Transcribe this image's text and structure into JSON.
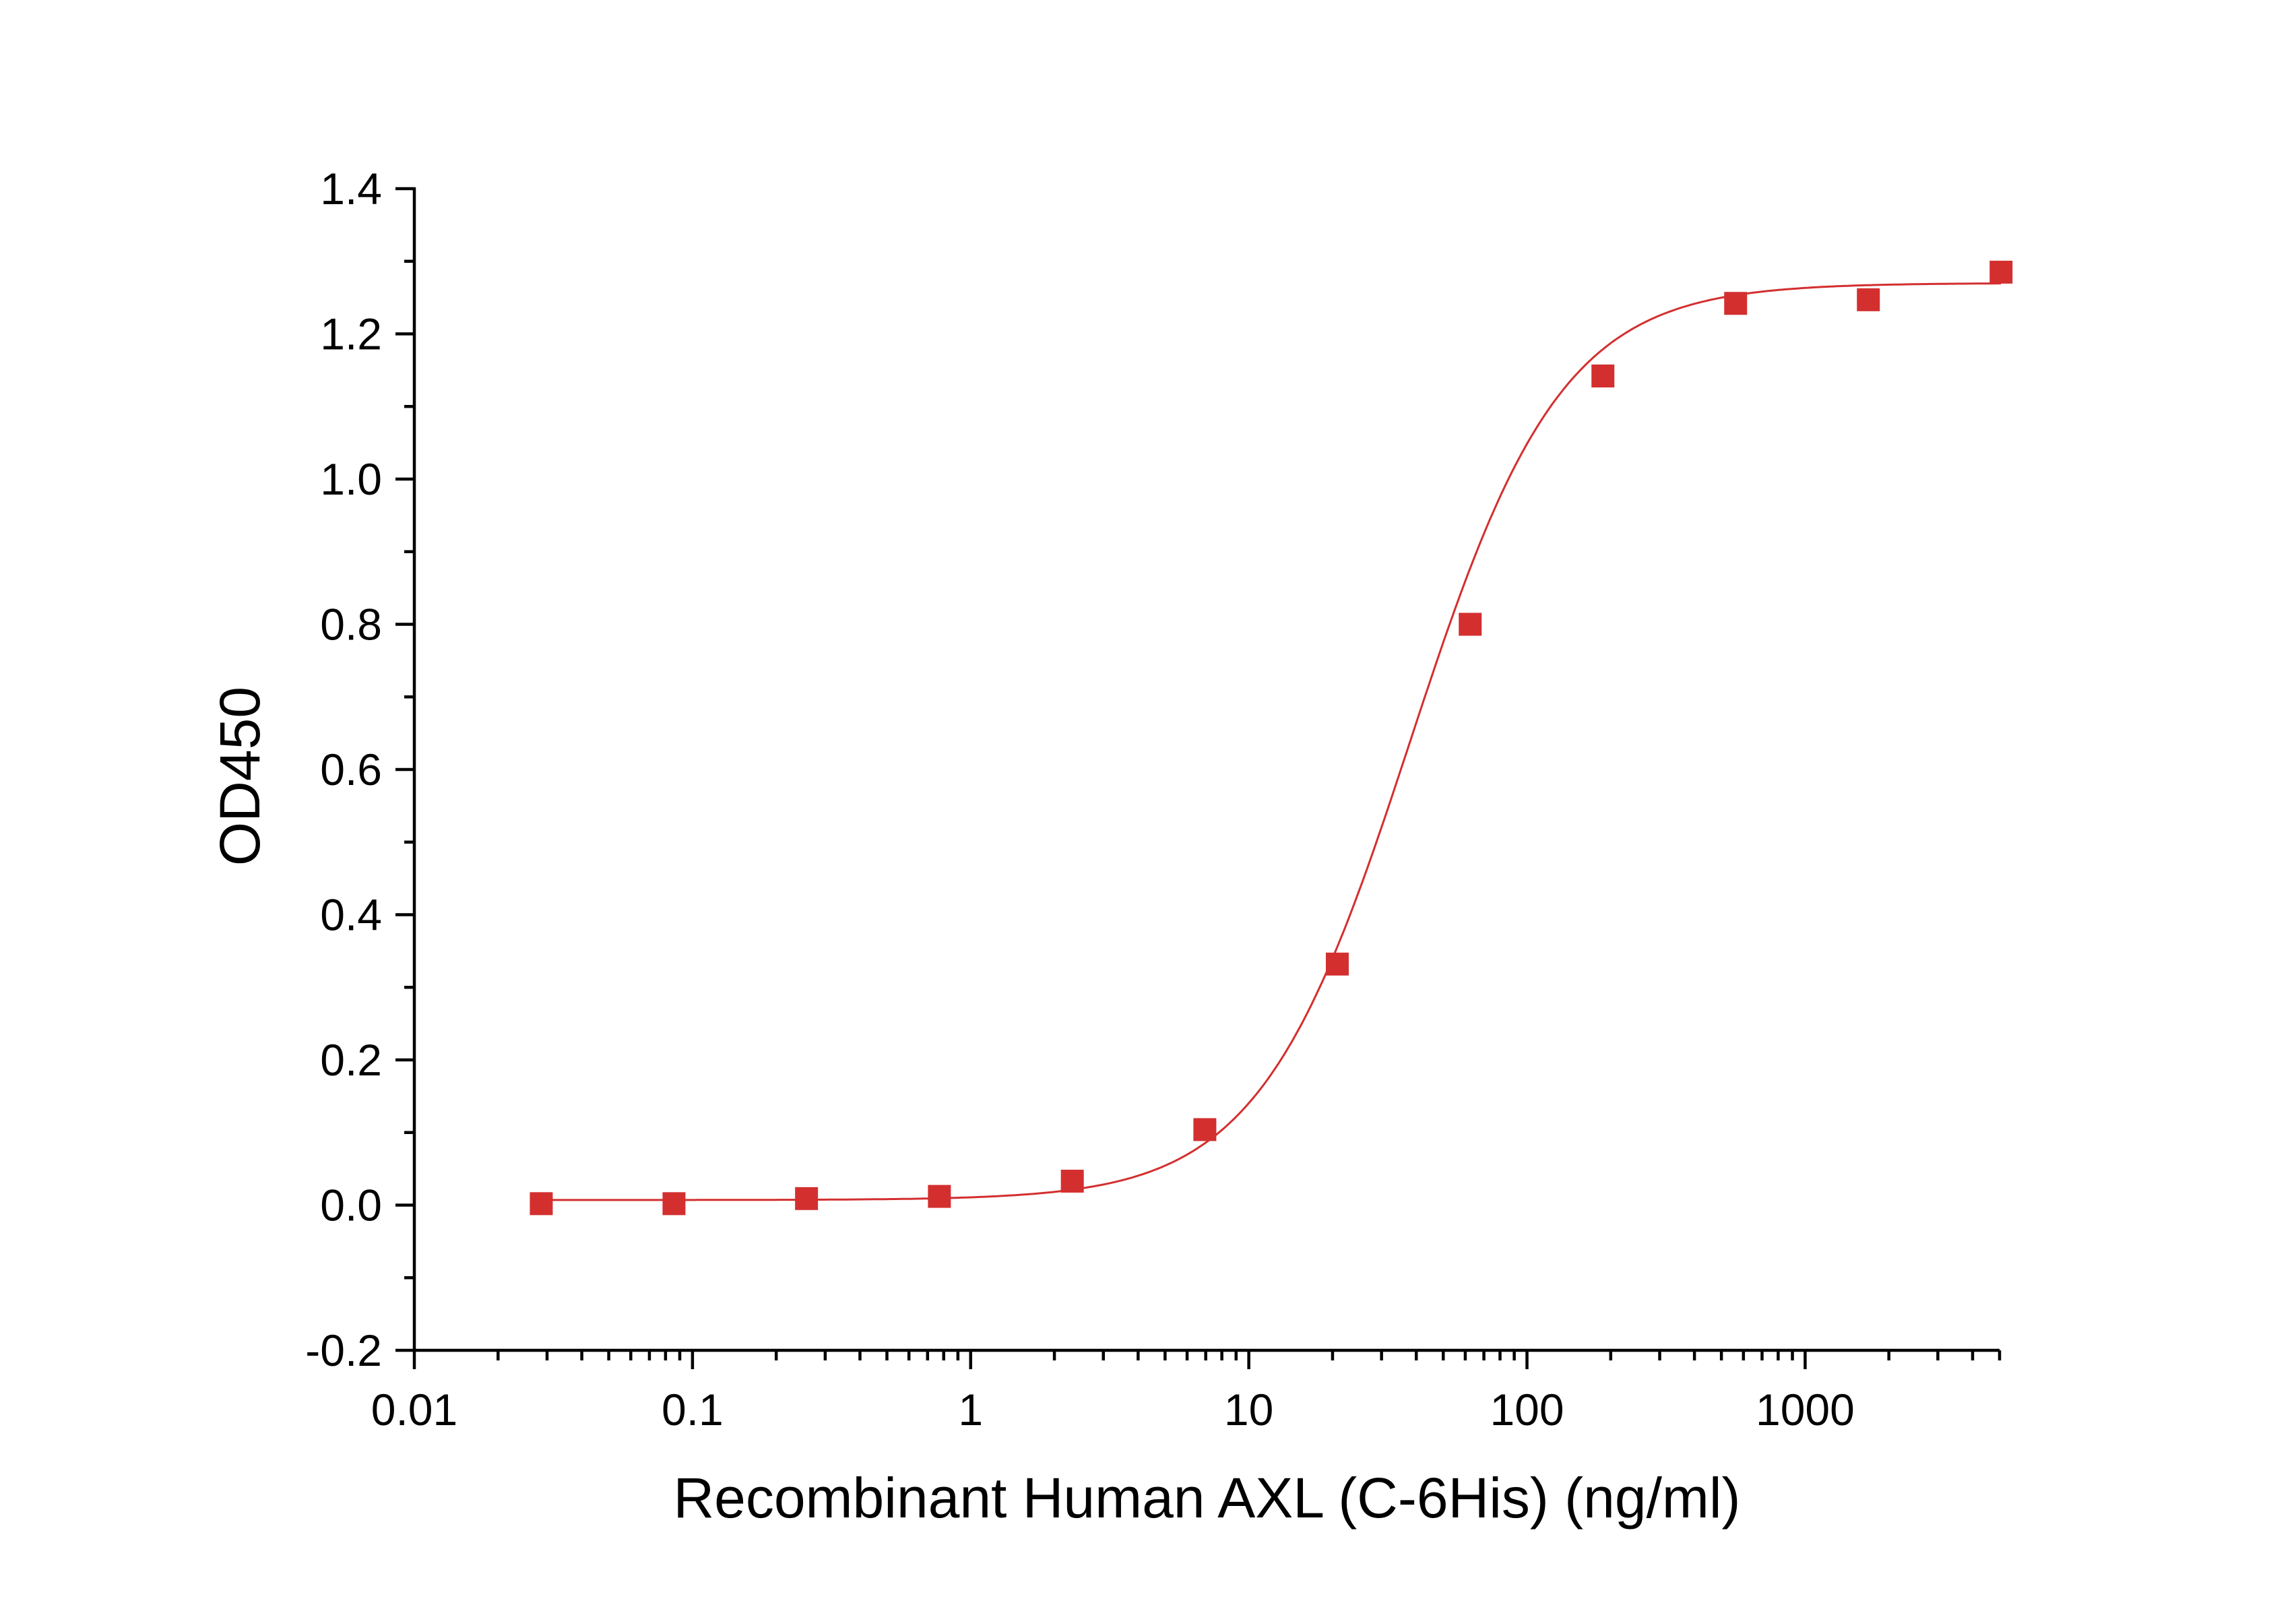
{
  "chart_data": {
    "type": "scatter",
    "title": "",
    "xlabel": "Recombinant Human AXL (C-6His) (ng/ml)",
    "ylabel": "OD450",
    "x_scale": "log",
    "xlim": [
      0.01,
      5000
    ],
    "ylim": [
      -0.2,
      1.4
    ],
    "x_ticks": [
      0.01,
      0.1,
      1,
      10,
      100,
      1000
    ],
    "x_tick_labels": [
      "0.01",
      "0.1",
      "1",
      "10",
      "100",
      "1000"
    ],
    "y_ticks": [
      -0.2,
      0.0,
      0.2,
      0.4,
      0.6,
      0.8,
      1.0,
      1.2,
      1.4
    ],
    "y_tick_labels": [
      "-0.2",
      "0.0",
      "0.2",
      "0.4",
      "0.6",
      "0.8",
      "1.0",
      "1.2",
      "1.4"
    ],
    "grid": false,
    "legend": "none",
    "series": [
      {
        "marker": "square",
        "color": "#d32f2f",
        "x": [
          0.0286,
          0.0858,
          0.257,
          0.772,
          2.32,
          6.95,
          20.8,
          62.5,
          187.5,
          562.5,
          1687.5,
          5062.5
        ],
        "y": [
          0.002,
          0.002,
          0.009,
          0.012,
          0.033,
          0.104,
          0.332,
          0.8,
          1.142,
          1.242,
          1.247,
          1.285
        ]
      }
    ],
    "fit": {
      "model": "4PL",
      "color": "#d32f2f",
      "bottom": 0.007,
      "top": 1.27,
      "ec50": 38,
      "hill": 1.6
    }
  }
}
